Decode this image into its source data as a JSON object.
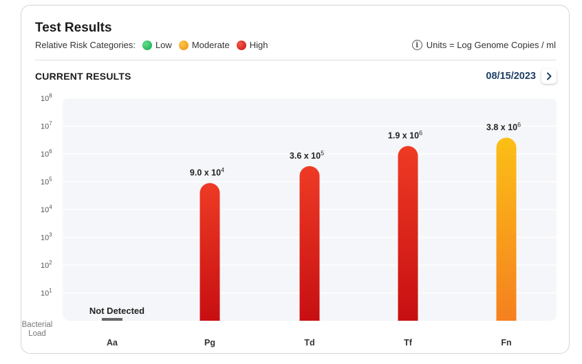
{
  "card": {
    "title": "Test Results",
    "legend_label": "Relative Risk Categories:",
    "legend": [
      {
        "label": "Low",
        "color": "#22c55e"
      },
      {
        "label": "Moderate",
        "color": "#f59e0b"
      },
      {
        "label": "High",
        "color": "#dc2626"
      }
    ],
    "units_text": "Units = Log Genome Copies / ml",
    "info_icon": "info-icon",
    "section_title": "CURRENT RESULTS",
    "date": "08/15/2023",
    "next_icon": "chevron-right-icon",
    "y_axis_title": "Bacterial Load"
  },
  "chart_data": {
    "type": "bar",
    "y_scale": "log10",
    "ylim_exponent": [
      0,
      8
    ],
    "y_ticks": [
      {
        "base": "10",
        "exp": "8",
        "value": 8
      },
      {
        "base": "10",
        "exp": "7",
        "value": 7
      },
      {
        "base": "10",
        "exp": "6",
        "value": 6
      },
      {
        "base": "10",
        "exp": "5",
        "value": 5
      },
      {
        "base": "10",
        "exp": "4",
        "value": 4
      },
      {
        "base": "10",
        "exp": "3",
        "value": 3
      },
      {
        "base": "10",
        "exp": "2",
        "value": 2
      },
      {
        "base": "10",
        "exp": "1",
        "value": 1
      }
    ],
    "grid": true,
    "categories": [
      "Aa",
      "Pg",
      "Td",
      "Tf",
      "Fn"
    ],
    "bars": [
      {
        "category": "Aa",
        "detected": false,
        "label": "Not Detected",
        "risk": "none"
      },
      {
        "category": "Pg",
        "detected": true,
        "value": 90000,
        "log_value": 4.95,
        "label_mantissa": "9.0 x 10",
        "label_exp": "4",
        "risk": "High",
        "colors": [
          "#ee3b24",
          "#c70f12"
        ]
      },
      {
        "category": "Td",
        "detected": true,
        "value": 360000,
        "log_value": 5.56,
        "label_mantissa": "3.6 x 10",
        "label_exp": "5",
        "risk": "High",
        "colors": [
          "#ee3b24",
          "#c70f12"
        ]
      },
      {
        "category": "Tf",
        "detected": true,
        "value": 1900000,
        "log_value": 6.28,
        "label_mantissa": "1.9 x 10",
        "label_exp": "6",
        "risk": "High",
        "colors": [
          "#ee3b24",
          "#c70f12"
        ]
      },
      {
        "category": "Fn",
        "detected": true,
        "value": 3800000,
        "log_value": 6.58,
        "label_mantissa": "3.8 x 10",
        "label_exp": "6",
        "risk": "Moderate",
        "colors": [
          "#fbbf16",
          "#f5801f"
        ]
      }
    ]
  }
}
